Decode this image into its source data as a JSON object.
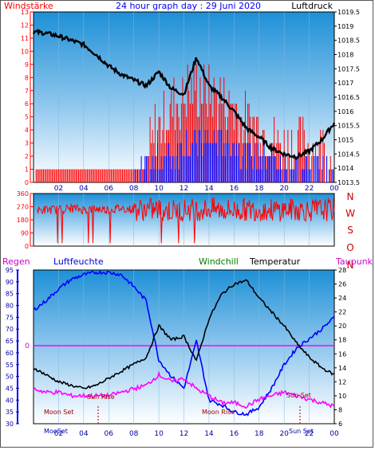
{
  "title": "24 hour graph day : 29 Juni 2020",
  "top": {
    "left_label": "Windstärke",
    "right_label": "Luftdruck",
    "left_ticks": [
      "0",
      "1",
      "2",
      "3",
      "4",
      "5",
      "6",
      "7",
      "8",
      "9",
      "10",
      "11",
      "12",
      "13"
    ],
    "right_ticks": [
      "1013.5",
      "1014",
      "1014.5",
      "1015",
      "1015.5",
      "1016",
      "1016.5",
      "1017",
      "1017.5",
      "1018",
      "1018.5",
      "1019",
      "1019.5"
    ],
    "x_ticks": [
      "02",
      "04",
      "06",
      "08",
      "10",
      "12",
      "14",
      "16",
      "18",
      "20",
      "22",
      "00"
    ]
  },
  "middle": {
    "left_ticks": [
      "0",
      "90",
      "180",
      "270",
      "360"
    ],
    "right_letters": [
      "N",
      "W",
      "S",
      "O",
      "N"
    ]
  },
  "bottom": {
    "legend": {
      "regen": "Regen",
      "luftfeuchte": "Luftfeuchte",
      "windchill": "Windchill",
      "temperatur": "Temperatur",
      "taupunkt": "Taupunkt"
    },
    "left_ticks": [
      "30",
      "35",
      "40",
      "45",
      "50",
      "55",
      "60",
      "65",
      "70",
      "75",
      "80",
      "85",
      "90",
      "95"
    ],
    "right_ticks": [
      "6",
      "8",
      "10",
      "12",
      "14",
      "16",
      "18",
      "20",
      "22",
      "24",
      "26",
      "28"
    ],
    "rain_zero": "0",
    "x_ticks": [
      "02",
      "04",
      "06",
      "08",
      "10",
      "12",
      "14",
      "16",
      "18",
      "20",
      "22",
      "00"
    ],
    "annotations": {
      "moon_set_1": "Moon Set",
      "sun_rise_1": "Sun Rise",
      "moon_rise": "Moon Rise",
      "sun_set": "Sun Set",
      "bottom_moon_set": "MooSet",
      "bottom_sun_set": "Sun Set"
    }
  },
  "colors": {
    "wind_speed": "#ff0000",
    "wind_gust": "#0000ff",
    "pressure": "#000000",
    "humidity": "#0000ff",
    "temperature": "#000000",
    "dewpoint": "#ff00ff",
    "rain_line": "#ff00ff",
    "panel_bg_top": "#1e90d6",
    "panel_bg_bottom": "#ffffff"
  },
  "chart_data": [
    {
      "type": "line",
      "title": "24 hour graph day : 29 Juni 2020",
      "x_hours": [
        0,
        1,
        2,
        3,
        4,
        5,
        6,
        7,
        8,
        9,
        10,
        11,
        12,
        13,
        14,
        15,
        16,
        17,
        18,
        19,
        20,
        21,
        22,
        23,
        24
      ],
      "series": [
        {
          "name": "Luftdruck",
          "axis": "right",
          "values": [
            1018.8,
            1018.75,
            1018.65,
            1018.5,
            1018.35,
            1018.0,
            1017.6,
            1017.3,
            1017.1,
            1016.9,
            1017.4,
            1016.8,
            1016.6,
            1017.9,
            1016.9,
            1016.5,
            1016.0,
            1015.4,
            1015.1,
            1014.7,
            1014.5,
            1014.4,
            1014.6,
            1015.0,
            1015.6
          ]
        },
        {
          "name": "Windstärke",
          "axis": "left",
          "values": [
            1,
            1,
            1,
            1,
            1,
            1,
            1,
            1,
            1,
            1,
            4,
            5,
            6,
            7,
            6,
            6,
            5,
            4,
            4,
            3,
            2,
            2,
            2,
            2,
            1
          ]
        },
        {
          "name": "Böen",
          "axis": "left",
          "values": [
            0,
            0,
            0,
            0,
            0,
            0,
            0,
            0,
            0,
            1,
            2,
            2,
            3,
            3,
            3,
            3,
            3,
            2,
            2,
            2,
            1,
            1,
            1,
            1,
            1
          ]
        }
      ],
      "left_ylim": [
        0,
        13
      ],
      "right_ylim": [
        1013.5,
        1019.5
      ]
    },
    {
      "type": "line",
      "x_hours": [
        0,
        1,
        2,
        3,
        4,
        5,
        6,
        7,
        8,
        9,
        10,
        11,
        12,
        13,
        14,
        15,
        16,
        17,
        18,
        19,
        20,
        21,
        22,
        23,
        24
      ],
      "series": [
        {
          "name": "Windrichtung",
          "values": [
            240,
            250,
            250,
            260,
            250,
            255,
            250,
            260,
            250,
            250,
            250,
            240,
            250,
            250,
            255,
            250,
            245,
            250,
            250,
            245,
            250,
            250,
            245,
            250,
            250
          ]
        }
      ],
      "ylim": [
        0,
        360
      ]
    },
    {
      "type": "line",
      "x_hours": [
        0,
        1,
        2,
        3,
        4,
        5,
        6,
        7,
        8,
        9,
        10,
        11,
        12,
        13,
        14,
        15,
        16,
        17,
        18,
        19,
        20,
        21,
        22,
        23,
        24
      ],
      "series": [
        {
          "name": "Luftfeuchte",
          "axis": "left",
          "values": [
            78,
            82,
            87,
            91,
            93,
            94,
            94,
            93,
            88,
            82,
            57,
            50,
            45,
            65,
            40,
            38,
            35,
            34,
            37,
            45,
            55,
            62,
            66,
            70,
            75
          ]
        },
        {
          "name": "Temperatur",
          "axis": "right",
          "values": [
            14,
            13,
            12,
            11.5,
            11,
            11.5,
            12.5,
            13.5,
            14.5,
            15.5,
            20,
            18,
            18.5,
            15,
            21,
            24.5,
            26,
            26.5,
            24,
            22,
            20,
            17.5,
            15.5,
            14,
            13
          ]
        },
        {
          "name": "Taupunkt",
          "axis": "right",
          "values": [
            11,
            10.5,
            10.5,
            10,
            10,
            10,
            10,
            10.5,
            11,
            11.5,
            13,
            12,
            12.5,
            11,
            10,
            9,
            9,
            8.5,
            9.5,
            10,
            10.5,
            10,
            9.5,
            9,
            8.5
          ]
        }
      ],
      "left_ylim": [
        30,
        95
      ],
      "right_ylim": [
        6,
        28
      ]
    }
  ]
}
